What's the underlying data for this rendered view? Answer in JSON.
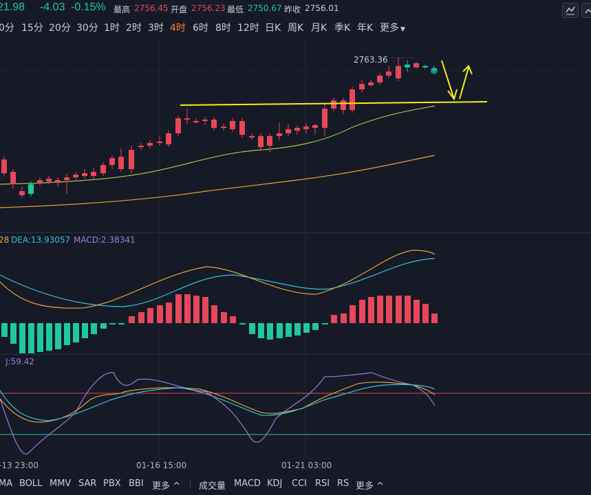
{
  "quote": {
    "last_partial": "21.98",
    "change": "-4.03",
    "change_pct": "-0.15%",
    "high_label": "最高",
    "high": "2756.45",
    "open_label": "开盘",
    "open": "2756.23",
    "low_label": "最低",
    "low": "2750.67",
    "prev_label": "昨收",
    "prev": "2756.01"
  },
  "periods": [
    {
      "label": "0分"
    },
    {
      "label": "15分"
    },
    {
      "label": "20分"
    },
    {
      "label": "30分"
    },
    {
      "label": "1时"
    },
    {
      "label": "2时"
    },
    {
      "label": "3时"
    },
    {
      "label": "4时"
    },
    {
      "label": "6时"
    },
    {
      "label": "8时"
    },
    {
      "label": "12时"
    },
    {
      "label": "日K"
    },
    {
      "label": "周K"
    },
    {
      "label": "月K"
    },
    {
      "label": "季K"
    },
    {
      "label": "年K"
    },
    {
      "label": "更多"
    }
  ],
  "active_period": "4时",
  "main_chart": {
    "high_marker": "2763.36"
  },
  "macd": {
    "dif_partial": "28",
    "dea": "DEA:13.93057",
    "macd": "MACD:2.38341"
  },
  "kdj": {
    "j": "J:59.42"
  },
  "x_axis": [
    "-13 23:00",
    "01-16 15:00",
    "01-21 03:00"
  ],
  "indicators_main": [
    {
      "label": "MA"
    },
    {
      "label": "BOLL"
    },
    {
      "label": "MMV"
    },
    {
      "label": "SAR"
    },
    {
      "label": "PBX"
    },
    {
      "label": "BBI"
    },
    {
      "label": "更多 ^"
    }
  ],
  "indicators_sub": [
    {
      "label": "成交量"
    },
    {
      "label": "MACD"
    },
    {
      "label": "KDJ"
    },
    {
      "label": "CCI"
    },
    {
      "label": "RSI"
    },
    {
      "label": "RS"
    },
    {
      "label": "更多 ^"
    }
  ],
  "colors": {
    "up": "#e8475a",
    "down": "#1fc7a2",
    "ma_short": "#a5c24a",
    "ma_long": "#e6a040",
    "dea": "#39c0d8",
    "dif": "#e6a040",
    "j": "#a07ae0",
    "annotation": "#ffec1a"
  }
}
